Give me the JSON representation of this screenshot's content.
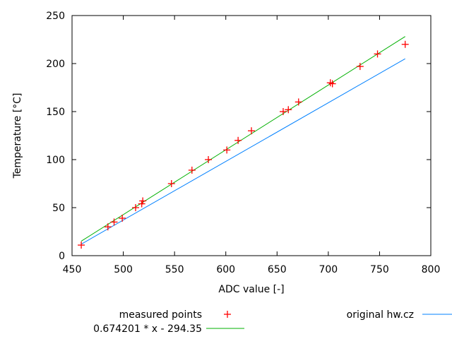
{
  "chart_data": {
    "type": "line",
    "xlabel": "ADC value [-]",
    "ylabel": "Temperature [°C]",
    "xlim": [
      450,
      800
    ],
    "ylim": [
      0,
      250
    ],
    "xticks": [
      450,
      500,
      550,
      600,
      650,
      700,
      750,
      800
    ],
    "yticks": [
      0,
      50,
      100,
      150,
      200,
      250
    ],
    "grid": false,
    "legend_position": "bottom",
    "series": [
      {
        "name": "measured points",
        "kind": "points",
        "color": "#ff0000",
        "x": [
          459,
          485,
          491,
          499,
          512,
          518,
          519,
          547,
          567,
          583,
          601,
          612,
          625,
          656,
          661,
          671,
          702,
          704,
          731,
          748,
          775
        ],
        "y": [
          11,
          30,
          35,
          39,
          50,
          54,
          57,
          75,
          89,
          100,
          110,
          120,
          130,
          150,
          152,
          160,
          180,
          179,
          197,
          210,
          220
        ]
      },
      {
        "name": "original hw.cz",
        "kind": "line",
        "color": "#0080ff",
        "x": [
          459,
          775
        ],
        "y": [
          12,
          205
        ]
      },
      {
        "name": "0.674201 * x - 294.35",
        "kind": "line",
        "color": "#00b000",
        "x": [
          459,
          775
        ],
        "y": [
          15.1,
          228.2
        ]
      }
    ]
  }
}
